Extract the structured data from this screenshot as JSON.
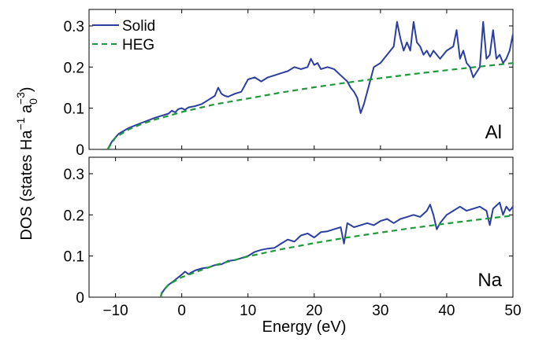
{
  "chart_data": [
    {
      "type": "line",
      "panel_label": "Al",
      "xlim": [
        -14,
        50
      ],
      "ylim": [
        0,
        0.34
      ],
      "x_ticks": [
        -10,
        0,
        10,
        20,
        30,
        40,
        50
      ],
      "x_tick_labels": [
        "−10",
        "0",
        "10",
        "20",
        "30",
        "40",
        "50"
      ],
      "y_ticks": [
        0,
        0.1,
        0.2,
        0.3
      ],
      "y_tick_labels": [
        "0",
        "0.1",
        "0.2",
        "0.3"
      ],
      "legend": {
        "placement": "top-left",
        "entries": [
          "Solid",
          "HEG"
        ]
      },
      "band_bottom": -11.2,
      "heg_coefficient": 0.0271,
      "series": [
        {
          "name": "Solid",
          "color": "#2b3fa0",
          "style": "solid",
          "x": [
            -11.2,
            -10.5,
            -9.5,
            -8,
            -6,
            -4,
            -3,
            -2,
            -1.5,
            -1,
            -0.5,
            0,
            0.5,
            1,
            2,
            3,
            4,
            5,
            5.5,
            6,
            6.5,
            7,
            8,
            9,
            10,
            11,
            12,
            13,
            14,
            15,
            16,
            17,
            18,
            19,
            19.5,
            20,
            20.5,
            21,
            22,
            23,
            24,
            25,
            25.5,
            26,
            26.5,
            27,
            27.5,
            28,
            29,
            30,
            31,
            32,
            32.5,
            33,
            33.5,
            34,
            34.5,
            35,
            35.5,
            36,
            36.5,
            37,
            37.5,
            38,
            39,
            40,
            41,
            41.5,
            42,
            42.5,
            43,
            43.5,
            44,
            45,
            45.5,
            46,
            46.5,
            47,
            47.5,
            48,
            48.5,
            49,
            49.5,
            50
          ],
          "y": [
            0,
            0.02,
            0.038,
            0.052,
            0.065,
            0.077,
            0.082,
            0.087,
            0.094,
            0.09,
            0.098,
            0.1,
            0.096,
            0.102,
            0.105,
            0.11,
            0.12,
            0.13,
            0.15,
            0.135,
            0.13,
            0.128,
            0.135,
            0.14,
            0.17,
            0.175,
            0.165,
            0.175,
            0.18,
            0.185,
            0.19,
            0.2,
            0.195,
            0.2,
            0.22,
            0.205,
            0.21,
            0.195,
            0.2,
            0.195,
            0.18,
            0.165,
            0.15,
            0.14,
            0.125,
            0.088,
            0.11,
            0.14,
            0.2,
            0.21,
            0.23,
            0.25,
            0.31,
            0.27,
            0.24,
            0.26,
            0.24,
            0.31,
            0.26,
            0.25,
            0.23,
            0.24,
            0.225,
            0.24,
            0.22,
            0.24,
            0.25,
            0.29,
            0.22,
            0.24,
            0.21,
            0.2,
            0.175,
            0.2,
            0.31,
            0.22,
            0.23,
            0.29,
            0.22,
            0.23,
            0.21,
            0.22,
            0.24,
            0.28
          ]
        },
        {
          "name": "HEG",
          "color": "#1f9a3a",
          "style": "dashed",
          "x": [
            -11.2,
            -10,
            -8,
            -6,
            -4,
            -2,
            0,
            5,
            10,
            15,
            20,
            25,
            30,
            35,
            40,
            45,
            50
          ],
          "y": [
            0,
            0.029,
            0.0485,
            0.062,
            0.0726,
            0.0816,
            0.0907,
            0.1095,
            0.1235,
            0.1381,
            0.1509,
            0.1624,
            0.1731,
            0.1831,
            0.1924,
            0.2012,
            0.2097
          ]
        }
      ]
    },
    {
      "type": "line",
      "panel_label": "Na",
      "xlim": [
        -14,
        50
      ],
      "ylim": [
        0,
        0.34
      ],
      "x_ticks": [
        -10,
        0,
        10,
        20,
        30,
        40,
        50
      ],
      "x_tick_labels": [
        "−10",
        "0",
        "10",
        "20",
        "30",
        "40",
        "50"
      ],
      "y_ticks": [
        0,
        0.1,
        0.2,
        0.3
      ],
      "y_tick_labels": [
        "0",
        "0.1",
        "0.2",
        "0.3"
      ],
      "series": [
        {
          "name": "Solid",
          "color": "#2b3fa0",
          "style": "solid",
          "x": [
            -3.2,
            -3,
            -2.5,
            -2,
            -1,
            0,
            0.5,
            1,
            2,
            3,
            4,
            5,
            6,
            7,
            8,
            9,
            10,
            11,
            12,
            13,
            14,
            15,
            16,
            17,
            18,
            19,
            20,
            21,
            22,
            23,
            24,
            24.5,
            25,
            26,
            27,
            28,
            29,
            30,
            31,
            32,
            33,
            34,
            35,
            36,
            37,
            37.5,
            38,
            38.5,
            39,
            40,
            41,
            42,
            43,
            44,
            45,
            46,
            46.5,
            47,
            48,
            48.5,
            49,
            49.5,
            50
          ],
          "y": [
            0,
            0.01,
            0.022,
            0.03,
            0.042,
            0.055,
            0.062,
            0.056,
            0.065,
            0.07,
            0.072,
            0.078,
            0.08,
            0.088,
            0.09,
            0.095,
            0.1,
            0.11,
            0.115,
            0.118,
            0.12,
            0.13,
            0.14,
            0.135,
            0.15,
            0.155,
            0.145,
            0.158,
            0.16,
            0.165,
            0.17,
            0.13,
            0.18,
            0.17,
            0.175,
            0.18,
            0.175,
            0.185,
            0.19,
            0.18,
            0.19,
            0.195,
            0.2,
            0.195,
            0.21,
            0.225,
            0.2,
            0.165,
            0.18,
            0.2,
            0.21,
            0.22,
            0.21,
            0.215,
            0.22,
            0.21,
            0.175,
            0.215,
            0.23,
            0.2,
            0.22,
            0.21,
            0.22
          ]
        },
        {
          "name": "HEG",
          "color": "#1f9a3a",
          "style": "dashed",
          "x": [
            -3.2,
            -3,
            -2,
            0,
            5,
            10,
            15,
            20,
            25,
            30,
            35,
            40,
            45,
            50
          ],
          "y": [
            0,
            0.012,
            0.0305,
            0.0485,
            0.0777,
            0.0989,
            0.1163,
            0.1314,
            0.1449,
            0.1571,
            0.1684,
            0.179,
            0.1889,
            0.1982
          ]
        }
      ]
    }
  ],
  "xlabel": "Energy (eV)",
  "ylabel": "DOS (states Ha",
  "ylabel_exp1": "−1",
  "ylabel_mid": " a",
  "ylabel_sub": "0",
  "ylabel_exp2": "−3",
  "ylabel_end": ")",
  "colors": {
    "solid": "#2b3fa0",
    "heg": "#1f9a3a",
    "axes": "#000000"
  }
}
